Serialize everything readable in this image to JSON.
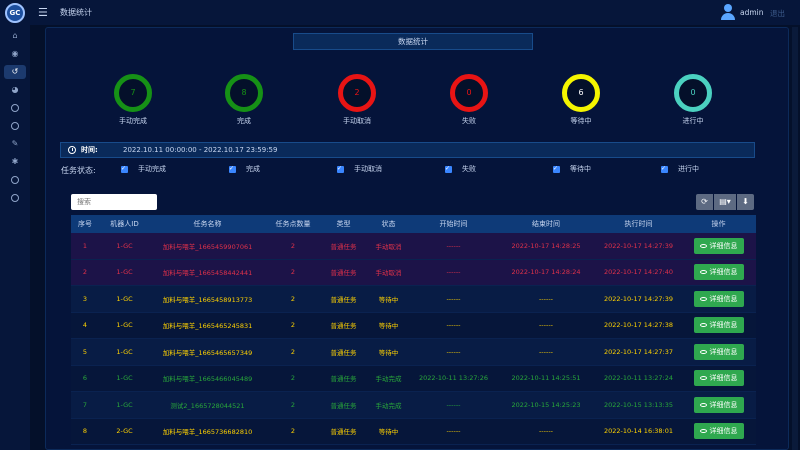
{
  "app": {
    "logo_text": "GC",
    "page_name": "数据统计",
    "username": "admin",
    "logout": "退出"
  },
  "sidebar": [
    "home-icon",
    "eye-icon",
    "history-icon",
    "pie-chart-icon",
    "circle-icon",
    "circle-icon",
    "wrench-icon",
    "gear-icon",
    "circle-icon",
    "circle-icon"
  ],
  "title": "数据统计",
  "stats": [
    {
      "value": "7",
      "label": "手动完成",
      "color": "#169116"
    },
    {
      "value": "8",
      "label": "完成",
      "color": "#169116"
    },
    {
      "value": "2",
      "label": "手动取消",
      "color": "#e81414"
    },
    {
      "value": "0",
      "label": "失败",
      "color": "#e81414"
    },
    {
      "value": "6",
      "label": "等待中",
      "color": "#f5f500"
    },
    {
      "value": "0",
      "label": "进行中",
      "color": "#4bd1c0"
    }
  ],
  "time": {
    "label": "时间:",
    "value": "2022.10.11 00:00:00 - 2022.10.17 23:59:59"
  },
  "filter": {
    "label": "任务状态:",
    "options": [
      "手动完成",
      "完成",
      "手动取消",
      "失败",
      "等待中",
      "进行中"
    ]
  },
  "search_placeholder": "搜索",
  "table": {
    "headers": [
      "序号",
      "机器人ID",
      "任务名称",
      "任务点数量",
      "类型",
      "状态",
      "开始时间",
      "结束时间",
      "执行时间",
      "操作"
    ],
    "rows": [
      {
        "tone": "red",
        "cells": [
          "1",
          "1-GC",
          "加料与喂羊_1665459907061",
          "2",
          "普通任务",
          "手动取消",
          "------",
          "2022-10-17 14:28:25",
          "2022-10-17 14:27:39"
        ]
      },
      {
        "tone": "red",
        "cells": [
          "2",
          "1-GC",
          "加料与喂羊_1665458442441",
          "2",
          "普通任务",
          "手动取消",
          "------",
          "2022-10-17 14:28:24",
          "2022-10-17 14:27:40"
        ]
      },
      {
        "tone": "yellow",
        "cells": [
          "3",
          "1-GC",
          "加料与喂羊_1665458913773",
          "2",
          "普通任务",
          "等待中",
          "------",
          "------",
          "2022-10-17 14:27:39"
        ]
      },
      {
        "tone": "yellow",
        "cells": [
          "4",
          "1-GC",
          "加料与喂羊_1665465245831",
          "2",
          "普通任务",
          "等待中",
          "------",
          "------",
          "2022-10-17 14:27:38"
        ]
      },
      {
        "tone": "yellow",
        "cells": [
          "5",
          "1-GC",
          "加料与喂羊_1665465657349",
          "2",
          "普通任务",
          "等待中",
          "------",
          "------",
          "2022-10-17 14:27:37"
        ]
      },
      {
        "tone": "green",
        "cells": [
          "6",
          "1-GC",
          "加料与喂羊_1665466045489",
          "2",
          "普通任务",
          "手动完成",
          "2022-10-11 13:27:26",
          "2022-10-11 14:25:51",
          "2022-10-11 13:27:24"
        ]
      },
      {
        "tone": "green",
        "cells": [
          "7",
          "1-GC",
          "测试2_1665728044521",
          "2",
          "普通任务",
          "手动完成",
          "------",
          "2022-10-15 14:25:23",
          "2022-10-15 13:13:35"
        ]
      },
      {
        "tone": "yellow",
        "cells": [
          "8",
          "2-GC",
          "加料与喂羊_1665736682810",
          "2",
          "普通任务",
          "等待中",
          "------",
          "------",
          "2022-10-14 16:38:01"
        ]
      }
    ],
    "action_label": "详细信息"
  }
}
